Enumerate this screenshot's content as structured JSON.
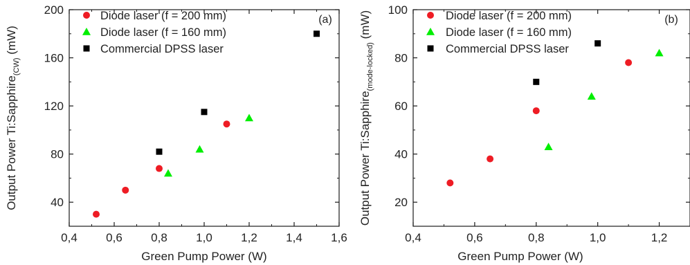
{
  "colors": {
    "diode_200": "#ee1c24",
    "diode_160": "#00ee00",
    "dpss": "#000000",
    "axis": "#1a1a1a"
  },
  "chart_data": [
    {
      "type": "scatter",
      "panel_label": "(a)",
      "xlabel": "Green Pump Power (W)",
      "ylabel_main": "Output Power Ti:Sapphire",
      "ylabel_sub": "(CW)",
      "ylabel_unit": "(mW)",
      "xlim": [
        0.4,
        1.6
      ],
      "ylim": [
        20,
        200
      ],
      "xticks": [
        0.4,
        0.6,
        0.8,
        1.0,
        1.2,
        1.4,
        1.6
      ],
      "xtick_labels": [
        "0,4",
        "0,6",
        "0,8",
        "1,0",
        "1,2",
        "1,4",
        "1,6"
      ],
      "yticks": [
        40,
        80,
        120,
        160,
        200
      ],
      "ytick_labels": [
        "40",
        "80",
        "120",
        "160",
        "200"
      ],
      "legend_position": "top-left",
      "series": [
        {
          "name": "Diode laser (f = 200 mm)",
          "marker": "circle",
          "color_key": "diode_200",
          "x": [
            0.52,
            0.65,
            0.8,
            1.1
          ],
          "y": [
            30,
            50,
            68,
            105
          ]
        },
        {
          "name": "Diode laser (f = 160 mm)",
          "marker": "triangle",
          "color_key": "diode_160",
          "x": [
            0.84,
            0.98,
            1.2
          ],
          "y": [
            64,
            84,
            110
          ]
        },
        {
          "name": "Commercial DPSS laser",
          "marker": "square",
          "color_key": "dpss",
          "x": [
            0.8,
            1.0,
            1.5
          ],
          "y": [
            82,
            115,
            180
          ]
        }
      ]
    },
    {
      "type": "scatter",
      "panel_label": "(b)",
      "xlabel": "Green Pump Power (W)",
      "ylabel_main": "Output Power Ti:Sapphire",
      "ylabel_sub": "(mode-locked)",
      "ylabel_unit": "(mW)",
      "xlim": [
        0.4,
        1.3
      ],
      "ylim": [
        10,
        100
      ],
      "xticks": [
        0.4,
        0.6,
        0.8,
        1.0,
        1.2
      ],
      "xtick_labels": [
        "0,4",
        "0,6",
        "0,8",
        "1,0",
        "1,2"
      ],
      "yticks": [
        20,
        40,
        60,
        80,
        100
      ],
      "ytick_labels": [
        "20",
        "40",
        "60",
        "80",
        "100"
      ],
      "legend_position": "top-left",
      "series": [
        {
          "name": "Diode laser (f = 200 mm)",
          "marker": "circle",
          "color_key": "diode_200",
          "x": [
            0.52,
            0.65,
            0.8,
            1.1
          ],
          "y": [
            28,
            38,
            58,
            78
          ]
        },
        {
          "name": "Diode laser (f = 160 mm)",
          "marker": "triangle",
          "color_key": "diode_160",
          "x": [
            0.84,
            0.98,
            1.2
          ],
          "y": [
            43,
            64,
            82
          ]
        },
        {
          "name": "Commercial DPSS laser",
          "marker": "square",
          "color_key": "dpss",
          "x": [
            0.8,
            1.0
          ],
          "y": [
            70,
            86
          ]
        }
      ]
    }
  ]
}
